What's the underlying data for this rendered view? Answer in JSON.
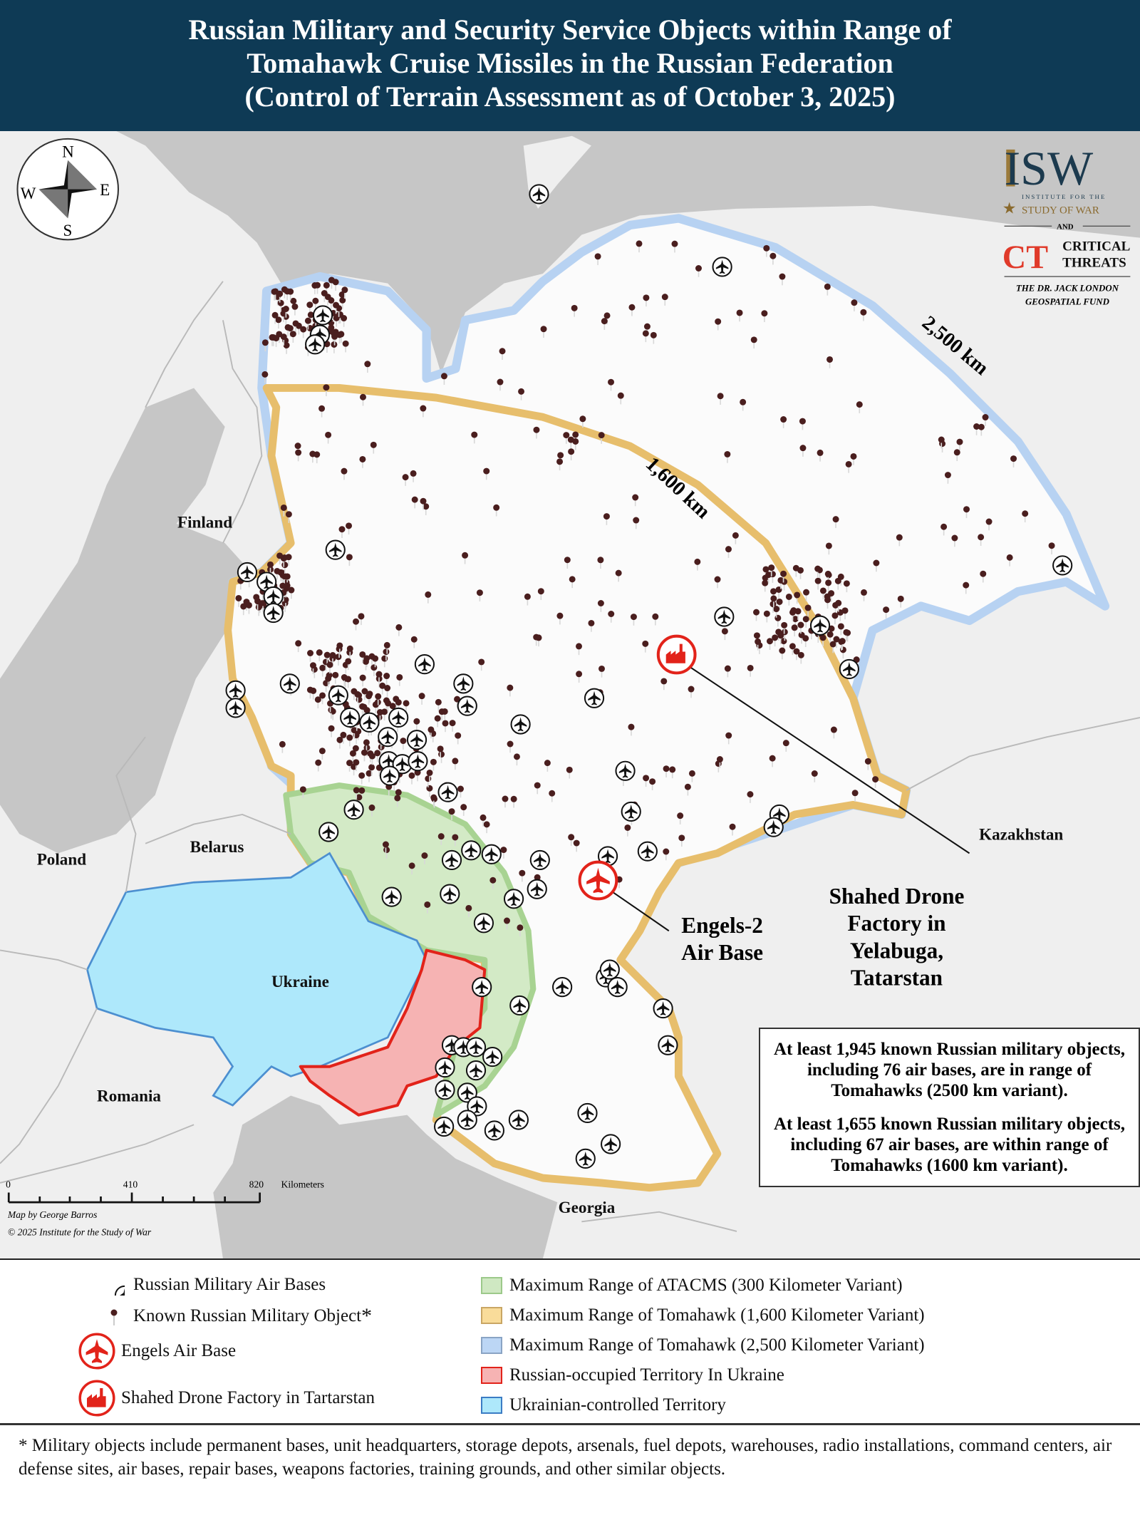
{
  "header": {
    "title_lines": [
      "Russian Military and Security Service Objects within Range of",
      "Tomahawk Cruise Missiles in the Russian Federation",
      "(Control of Terrain Assessment as of October 3, 2025)"
    ]
  },
  "logos": {
    "isw": "ISW",
    "isw_sub1": "INSTITUTE FOR THE",
    "isw_sub2": "STUDY OF WAR",
    "and": "AND",
    "ct_mark": "CT",
    "ct_line1": "CRITICAL",
    "ct_line2": "THREATS",
    "fund_line1": "THE DR. JACK LONDON",
    "fund_line2": "GEOSPATIAL FUND"
  },
  "compass": {
    "n": "N",
    "e": "E",
    "s": "S",
    "w": "W"
  },
  "range_labels": {
    "r2500": "2,500 km",
    "r1600": "1,600 km"
  },
  "countries": {
    "finland": "Finland",
    "belarus": "Belarus",
    "poland": "Poland",
    "ukraine": "Ukraine",
    "romania": "Romania",
    "georgia": "Georgia",
    "kazakhstan": "Kazakhstan"
  },
  "callouts": {
    "shahed": [
      "Shahed Drone",
      "Factory in",
      "Yelabuga,",
      "Tatarstan"
    ],
    "engels": [
      "Engels-2",
      "Air Base"
    ]
  },
  "stats": {
    "p1": "At least 1,945 known Russian military objects, including 76 air bases, are in range of Tomahawks (2500 km variant).",
    "p2": "At least 1,655 known Russian military objects, including 67 air bases, are within range of Tomahawks (1600 km variant)."
  },
  "scale": {
    "t0": "0",
    "t1": "410",
    "t2": "820",
    "unit": "Kilometers"
  },
  "credits": {
    "line1": "Map by George Barros",
    "line2": "© 2025 Institute for the Study of War"
  },
  "legend": {
    "left": [
      {
        "label": "Russian Military Air Bases",
        "icon": "air-base-icon"
      },
      {
        "label": "Known Russian Military Object",
        "suffix": "*",
        "icon": "military-object-icon"
      },
      {
        "label": "Engels Air Base",
        "icon": "engels-plane-icon"
      },
      {
        "label": "Shahed Drone Factory in Tartarstan",
        "icon": "factory-icon"
      }
    ],
    "right": [
      {
        "label": "Maximum Range of ATACMS (300 Kilometer Variant)",
        "fill": "#cfe8c2",
        "stroke": "#9cc98a"
      },
      {
        "label": "Maximum Range of Tomahawk (1,600 Kilometer Variant)",
        "fill": "#f9dc9a",
        "stroke": "#c9a664"
      },
      {
        "label": "Maximum Range of Tomahawk (2,500 Kilometer Variant)",
        "fill": "#bcd6f5",
        "stroke": "#8aa4c4"
      },
      {
        "label": "Russian-occupied Territory In Ukraine",
        "fill": "#f6b3b3",
        "stroke": "#e2231a"
      },
      {
        "label": "Ukrainian-controlled Territory",
        "fill": "#aee8fb",
        "stroke": "#3b7cc4"
      }
    ]
  },
  "footnote": "* Military objects include permanent bases, unit headquarters, storage depots, arsenals, fuel depots, warehouses, radio installations, command centers, air defense sites, air bases, repair bases, weapons factories, training grounds, and other similar objects.",
  "colors": {
    "header": "#0e3a55",
    "engels_red": "#e2231a",
    "dot": "#4a1e1e",
    "ukraine": "#aee8fb",
    "occupied": "#f6b3b3"
  }
}
